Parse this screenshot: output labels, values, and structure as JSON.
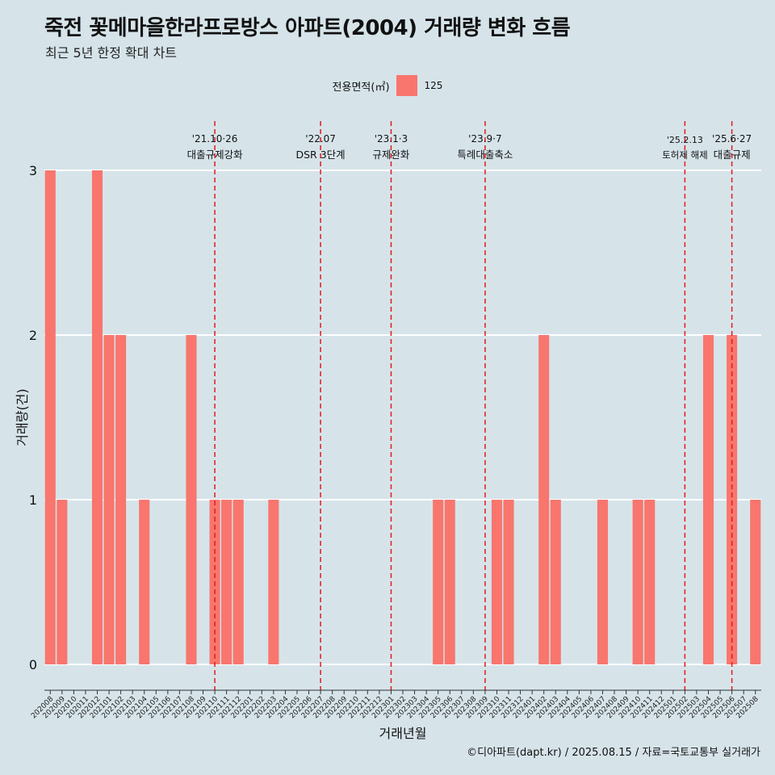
{
  "title": "죽전 꽃메마을한라프로방스 아파트(2004) 거래량 변화 흐름",
  "subtitle": "최근 5년 한정 확대 차트",
  "caption": "©디아파트(dapt.kr) / 2025.08.15 / 자료=국토교통부 실거래가",
  "legend": {
    "title": "전용면적(㎡)",
    "items": [
      {
        "label": "125",
        "color": "#f8766d"
      }
    ]
  },
  "colors": {
    "background": "#d6e4ea",
    "bar": "#f8766d",
    "gridline": "#ffffff",
    "event_line": "#e41a1c"
  },
  "chart_data": {
    "type": "bar",
    "xlabel": "거래년월",
    "ylabel": "거래량(건)",
    "ylim": [
      0,
      3
    ],
    "yticks": [
      0,
      1,
      2,
      3
    ],
    "grid": "horizontal-major",
    "legend_position": "top",
    "categories": [
      "202008",
      "202009",
      "202010",
      "202011",
      "202012",
      "202101",
      "202102",
      "202103",
      "202104",
      "202105",
      "202106",
      "202107",
      "202108",
      "202109",
      "202110",
      "202111",
      "202112",
      "202201",
      "202202",
      "202203",
      "202204",
      "202205",
      "202206",
      "202207",
      "202208",
      "202209",
      "202210",
      "202211",
      "202212",
      "202301",
      "202302",
      "202303",
      "202304",
      "202305",
      "202306",
      "202307",
      "202308",
      "202309",
      "202310",
      "202311",
      "202312",
      "202401",
      "202402",
      "202403",
      "202404",
      "202405",
      "202406",
      "202407",
      "202408",
      "202409",
      "202410",
      "202411",
      "202412",
      "202501",
      "202502",
      "202503",
      "202504",
      "202505",
      "202506",
      "202507",
      "202508"
    ],
    "series": [
      {
        "name": "125",
        "values": [
          3,
          1,
          0,
          0,
          3,
          2,
          2,
          0,
          1,
          0,
          0,
          0,
          2,
          0,
          1,
          1,
          1,
          0,
          0,
          1,
          0,
          0,
          0,
          0,
          0,
          0,
          0,
          0,
          0,
          0,
          0,
          0,
          0,
          1,
          1,
          0,
          0,
          0,
          1,
          1,
          0,
          0,
          2,
          1,
          0,
          0,
          0,
          1,
          0,
          0,
          1,
          1,
          0,
          0,
          0,
          0,
          2,
          0,
          2,
          0,
          1
        ]
      }
    ],
    "annotations": [
      {
        "x": "202110",
        "date": "'21.10·26",
        "label": "대출규제강화"
      },
      {
        "x": "202207",
        "date": "'22.07",
        "label": "DSR 3단계"
      },
      {
        "x": "202301",
        "date": "'23.1·3",
        "label": "규제완화"
      },
      {
        "x": "202309",
        "date": "'23.9·7",
        "label": "특례대출축소"
      },
      {
        "x": "202502",
        "date": "'25.2.13",
        "label": "토허제 해제"
      },
      {
        "x": "202506",
        "date": "'25.6·27",
        "label": "대출규제"
      }
    ]
  }
}
